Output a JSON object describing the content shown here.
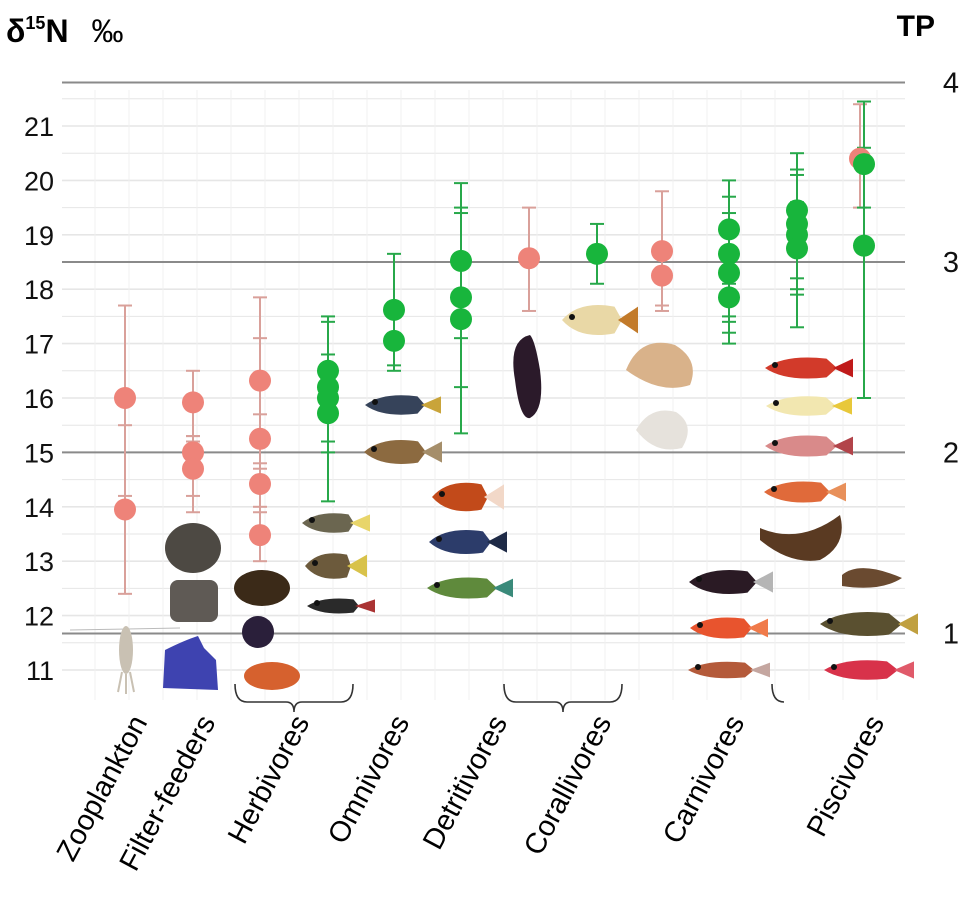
{
  "chart_data": {
    "type": "scatter",
    "ylabel_main": "δ",
    "ylabel_sup": "15",
    "ylabel_rest": "N",
    "ylabel_unit": "‰",
    "right_axis_title": "TP",
    "yticks": [
      11,
      12,
      13,
      14,
      15,
      16,
      17,
      18,
      19,
      20,
      21
    ],
    "ylim": [
      10.5,
      22
    ],
    "trophic_position_lines": [
      {
        "label": "1",
        "value": 11.67
      },
      {
        "label": "2",
        "value": 15.0
      },
      {
        "label": "3",
        "value": 18.5
      },
      {
        "label": "4",
        "value": 21.8
      }
    ],
    "categories": [
      "Zooplankton",
      "Filter-feeders",
      "Herbivores",
      "Omnivores",
      "Detritivores",
      "Corallivores",
      "Carnivores",
      "Piscivores"
    ],
    "group_brackets": [
      {
        "category": "Herbivores",
        "from_col": 2,
        "to_col": 3
      },
      {
        "category": "Detritivores",
        "from_col": 6,
        "to_col": 7
      },
      {
        "category": "Carnivores",
        "from_col": 10,
        "to_col": 12
      }
    ],
    "colors": {
      "invertebrate": "#ee8379",
      "fish": "#18b53c",
      "invertebrate_error": "#d9a09a",
      "fish_error": "#27a84a",
      "tp_line": "#8a8a8a",
      "grid": "#e6e6e6"
    },
    "series": [
      {
        "name": "Zooplankton",
        "col": 0,
        "group": "invertebrate",
        "points": [
          {
            "y": 16.0,
            "lo": 14.2,
            "hi": 17.7
          },
          {
            "y": 13.95,
            "lo": 12.4,
            "hi": 15.5
          }
        ]
      },
      {
        "name": "Filter-feeders",
        "col": 1,
        "group": "invertebrate",
        "points": [
          {
            "y": 15.92,
            "lo": 15.3,
            "hi": 16.5
          },
          {
            "y": 15.0,
            "lo": 14.2,
            "hi": 15.3
          },
          {
            "y": 14.7,
            "lo": 13.9,
            "hi": 15.2
          }
        ]
      },
      {
        "name": "Herbivores (invertebrates)",
        "col": 2,
        "group": "invertebrate",
        "points": [
          {
            "y": 16.32,
            "lo": 15.7,
            "hi": 17.85
          },
          {
            "y": 15.25,
            "lo": 14.7,
            "hi": 17.1
          },
          {
            "y": 14.42,
            "lo": 13.9,
            "hi": 14.8
          },
          {
            "y": 13.48,
            "lo": 13.0,
            "hi": 14.0
          }
        ]
      },
      {
        "name": "Herbivores (fish)",
        "col": 3,
        "group": "fish",
        "points": [
          {
            "y": 16.5,
            "lo": 15.0,
            "hi": 17.5
          },
          {
            "y": 16.2,
            "lo": 14.1,
            "hi": 17.4
          },
          {
            "y": 16.0,
            "lo": 15.6,
            "hi": 16.8
          },
          {
            "y": 15.72,
            "lo": 15.2,
            "hi": 16.6
          }
        ]
      },
      {
        "name": "Omnivores",
        "col": 4,
        "group": "fish",
        "points": [
          {
            "y": 17.62,
            "lo": 16.6,
            "hi": 18.65
          },
          {
            "y": 17.05,
            "lo": 16.5,
            "hi": 17.7
          }
        ]
      },
      {
        "name": "Detritivores (fish)",
        "col": 5,
        "group": "fish",
        "points": [
          {
            "y": 18.52,
            "lo": 15.35,
            "hi": 19.95
          },
          {
            "y": 17.85,
            "lo": 16.2,
            "hi": 19.5
          },
          {
            "y": 17.45,
            "lo": 17.1,
            "hi": 19.4
          }
        ]
      },
      {
        "name": "Detritivores (invertebrates)",
        "col": 6,
        "group": "invertebrate",
        "points": [
          {
            "y": 18.57,
            "lo": 17.6,
            "hi": 19.5
          }
        ]
      },
      {
        "name": "Corallivores",
        "col": 7,
        "group": "fish",
        "points": [
          {
            "y": 18.65,
            "lo": 18.1,
            "hi": 19.2
          }
        ]
      },
      {
        "name": "Carnivores (invertebrates)",
        "col": 8,
        "group": "invertebrate",
        "points": [
          {
            "y": 18.7,
            "lo": 17.7,
            "hi": 19.8
          },
          {
            "y": 18.25,
            "lo": 17.6,
            "hi": 18.7
          }
        ]
      },
      {
        "name": "Carnivores (fish 1)",
        "col": 9,
        "group": "fish",
        "points": [
          {
            "y": 19.1,
            "lo": 17.4,
            "hi": 20.0
          },
          {
            "y": 18.65,
            "lo": 17.0,
            "hi": 19.7
          },
          {
            "y": 18.3,
            "lo": 17.2,
            "hi": 19.4
          },
          {
            "y": 17.85,
            "lo": 17.5,
            "hi": 18.1
          }
        ]
      },
      {
        "name": "Carnivores (fish 2)",
        "col": 10,
        "group": "fish",
        "points": [
          {
            "y": 19.45,
            "lo": 17.3,
            "hi": 20.5
          },
          {
            "y": 19.2,
            "lo": 17.9,
            "hi": 20.2
          },
          {
            "y": 19.0,
            "lo": 18.0,
            "hi": 20.1
          },
          {
            "y": 18.75,
            "lo": 18.2,
            "hi": 19.6
          }
        ]
      },
      {
        "name": "Piscivores (invertebrates)",
        "col": 11,
        "group": "invertebrate",
        "points": [
          {
            "y": 20.4,
            "lo": 19.5,
            "hi": 21.4
          }
        ]
      },
      {
        "name": "Piscivores (fish)",
        "col": 11,
        "group": "fish",
        "points": [
          {
            "y": 20.3,
            "lo": 19.5,
            "hi": 21.45
          },
          {
            "y": 18.8,
            "lo": 16.0,
            "hi": 20.6
          }
        ]
      }
    ]
  }
}
